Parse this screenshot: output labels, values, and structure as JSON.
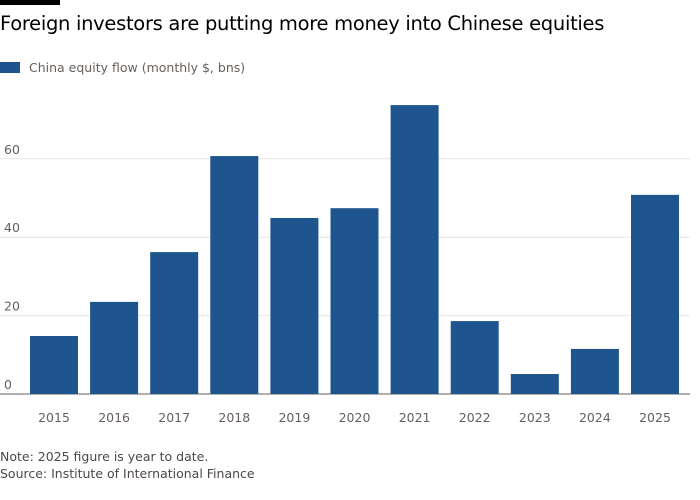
{
  "chart_data": {
    "type": "bar",
    "title": "Foreign investors are putting more money into Chinese equities",
    "categories": [
      "2015",
      "2016",
      "2017",
      "2018",
      "2019",
      "2020",
      "2021",
      "2022",
      "2023",
      "2024",
      "2025"
    ],
    "series": [
      {
        "name": "China equity flow (monthly $, bns)",
        "values": [
          14.8,
          23.5,
          36.2,
          60.7,
          44.9,
          47.4,
          73.7,
          18.6,
          5.1,
          11.5,
          50.8
        ],
        "color": "#1f558e"
      }
    ],
    "yticks": [
      0,
      20,
      40,
      60
    ],
    "ylim": [
      0,
      78
    ],
    "grid": true,
    "legend": "top-left"
  },
  "notes": {
    "note": "Note: 2025 figure is year to date.",
    "source": "Source: Institute of International Finance"
  }
}
